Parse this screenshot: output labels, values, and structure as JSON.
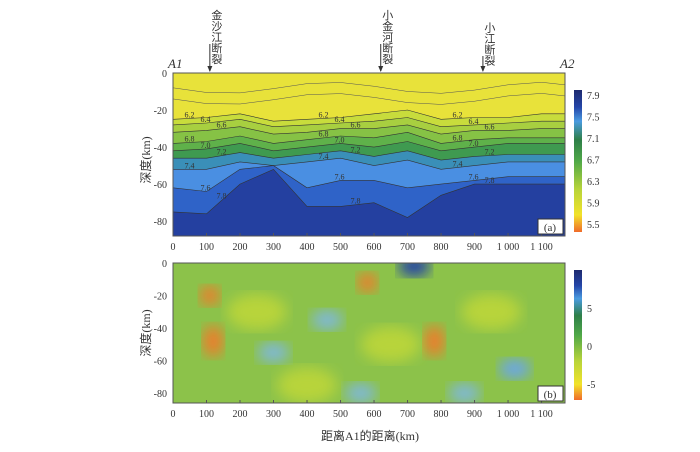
{
  "faults": [
    {
      "name": "金沙江断裂",
      "x": 110
    },
    {
      "name": "小金河断裂",
      "x": 620
    },
    {
      "name": "小江断裂",
      "x": 925
    }
  ],
  "endpoints": {
    "left": "A1",
    "right": "A2"
  },
  "chart_data": [
    {
      "type": "heatmap",
      "panel_label": "(a)",
      "ylabel": "深度(km)",
      "xlim": [
        0,
        1170
      ],
      "ylim": [
        -88,
        0
      ],
      "xticks": [
        0,
        100,
        200,
        300,
        400,
        500,
        600,
        700,
        800,
        900,
        1000,
        1100
      ],
      "xtick_labels": [
        "0",
        "100",
        "200",
        "300",
        "400",
        "500",
        "600",
        "700",
        "800",
        "900",
        "1 000",
        "1 100"
      ],
      "yticks": [
        0,
        -20,
        -40,
        -60,
        -80
      ],
      "ytick_labels": [
        "0",
        "-20",
        "-40",
        "-60",
        "-80"
      ],
      "colorbar": {
        "ticks": [
          "7.9",
          "7.5",
          "7.1",
          "6.7",
          "6.3",
          "5.9",
          "5.5"
        ],
        "range": [
          5.5,
          7.9
        ]
      },
      "contour_x": [
        0,
        100,
        200,
        300,
        400,
        500,
        600,
        700,
        800,
        900,
        1000,
        1100,
        1170
      ],
      "contours": [
        {
          "level": "6.2",
          "depths": [
            25,
            24,
            22,
            26,
            25,
            24,
            22,
            20,
            25,
            24,
            24,
            22,
            22
          ]
        },
        {
          "level": "6.4",
          "depths": [
            28,
            27,
            25,
            29,
            28,
            27,
            26,
            24,
            29,
            28,
            27,
            26,
            26
          ]
        },
        {
          "level": "6.6",
          "depths": [
            32,
            31,
            29,
            33,
            32,
            30,
            30,
            28,
            33,
            31,
            31,
            30,
            30
          ]
        },
        {
          "level": "6.8",
          "depths": [
            38,
            37,
            34,
            38,
            36,
            34,
            35,
            32,
            38,
            36,
            35,
            35,
            35
          ]
        },
        {
          "level": "7.0",
          "depths": [
            42,
            41,
            38,
            42,
            40,
            38,
            40,
            37,
            42,
            40,
            38,
            38,
            38
          ]
        },
        {
          "level": "7.2",
          "depths": [
            46,
            46,
            43,
            46,
            44,
            42,
            45,
            42,
            47,
            45,
            44,
            44,
            44
          ]
        },
        {
          "level": "7.4",
          "depths": [
            52,
            52,
            48,
            50,
            48,
            46,
            50,
            47,
            52,
            50,
            48,
            48,
            48
          ]
        },
        {
          "level": "7.6",
          "depths": [
            62,
            64,
            52,
            50,
            62,
            58,
            58,
            62,
            60,
            58,
            56,
            56,
            56
          ]
        },
        {
          "level": "7.8",
          "depths": [
            75,
            76,
            60,
            52,
            72,
            72,
            70,
            78,
            66,
            60,
            60,
            60,
            60
          ]
        }
      ]
    },
    {
      "type": "heatmap",
      "panel_label": "(b)",
      "ylabel": "深度(km)",
      "xlabel": "距离A1的距离(km)",
      "xlim": [
        0,
        1170
      ],
      "ylim": [
        -86,
        0
      ],
      "yticks": [
        0,
        -20,
        -40,
        -60,
        -80
      ],
      "ytick_labels": [
        "0",
        "-20",
        "-40",
        "-60",
        "-80"
      ],
      "colorbar": {
        "ticks": [
          "5",
          "0",
          "-5"
        ],
        "range": [
          -6,
          9
        ]
      },
      "anomalies": [
        {
          "x": 110,
          "depth": 20,
          "value": -5
        },
        {
          "x": 120,
          "depth": 48,
          "value": -6
        },
        {
          "x": 580,
          "depth": 12,
          "value": -6
        },
        {
          "x": 780,
          "depth": 48,
          "value": -5
        },
        {
          "x": 720,
          "depth": 2,
          "value": 8
        },
        {
          "x": 1020,
          "depth": 65,
          "value": 5
        },
        {
          "x": 460,
          "depth": 35,
          "value": 3
        },
        {
          "x": 300,
          "depth": 55,
          "value": 2
        },
        {
          "x": 560,
          "depth": 80,
          "value": 3
        },
        {
          "x": 870,
          "depth": 80,
          "value": 3
        }
      ]
    }
  ]
}
